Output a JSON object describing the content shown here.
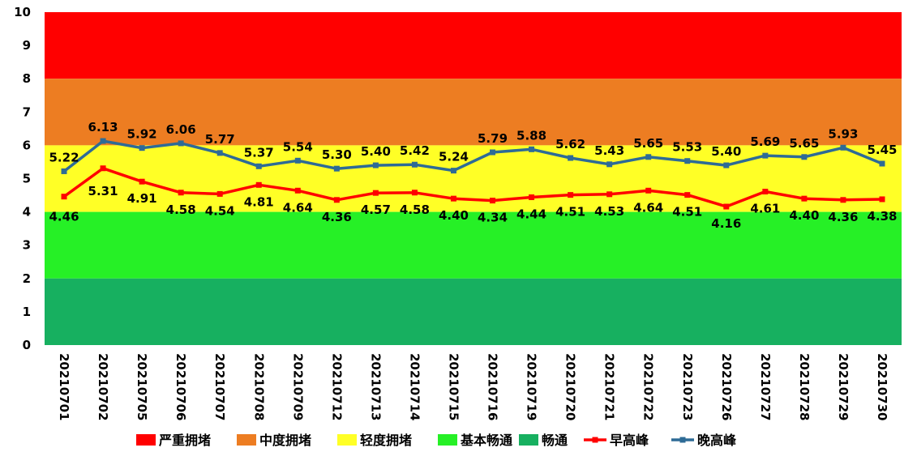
{
  "chart_data": {
    "type": "line",
    "ylim": [
      0,
      10
    ],
    "yticks": [
      "0",
      "1",
      "2",
      "3",
      "4",
      "5",
      "6",
      "7",
      "8",
      "9",
      "10"
    ],
    "categories": [
      "20210701",
      "20210702",
      "20210705",
      "20210706",
      "20210707",
      "20210708",
      "20210709",
      "20210712",
      "20210713",
      "20210714",
      "20210715",
      "20210716",
      "20210719",
      "20210720",
      "20210721",
      "20210722",
      "20210723",
      "20210726",
      "20210727",
      "20210728",
      "20210729",
      "20210730"
    ],
    "bands": [
      {
        "name": "严重拥堵",
        "from": 8,
        "to": 10,
        "color": "#ff0000"
      },
      {
        "name": "中度拥堵",
        "from": 6,
        "to": 8,
        "color": "#ed7d22"
      },
      {
        "name": "轻度拥堵",
        "from": 4,
        "to": 6,
        "color": "#ffff26"
      },
      {
        "name": "基本畅通",
        "from": 2,
        "to": 4,
        "color": "#26f026"
      },
      {
        "name": "畅通",
        "from": 0,
        "to": 2,
        "color": "#17b060"
      }
    ],
    "series": [
      {
        "name": "早高峰",
        "color": "#ff0000",
        "values": [
          4.46,
          5.31,
          4.91,
          4.58,
          4.54,
          4.81,
          4.64,
          4.36,
          4.57,
          4.58,
          4.4,
          4.34,
          4.44,
          4.51,
          4.53,
          4.64,
          4.51,
          4.16,
          4.61,
          4.4,
          4.36,
          4.38
        ],
        "labels": [
          "4.46",
          "5.31",
          "4.91",
          "4.58",
          "4.54",
          "4.81",
          "4.64",
          "4.36",
          "4.57",
          "4.58",
          "4.40",
          "4.34",
          "4.44",
          "4.51",
          "4.53",
          "4.64",
          "4.51",
          "4.16",
          "4.61",
          "4.40",
          "4.36",
          "4.38"
        ]
      },
      {
        "name": "晚高峰",
        "color": "#2e6b96",
        "values": [
          5.22,
          6.13,
          5.92,
          6.06,
          5.77,
          5.37,
          5.54,
          5.3,
          5.4,
          5.42,
          5.24,
          5.79,
          5.88,
          5.62,
          5.43,
          5.65,
          5.53,
          5.4,
          5.69,
          5.65,
          5.93,
          5.45
        ],
        "labels": [
          "5.22",
          "6.13",
          "5.92",
          "6.06",
          "5.77",
          "5.37",
          "5.54",
          "5.30",
          "5.40",
          "5.42",
          "5.24",
          "5.79",
          "5.88",
          "5.62",
          "5.43",
          "5.65",
          "5.53",
          "5.40",
          "5.69",
          "5.65",
          "5.93",
          "5.45"
        ]
      }
    ],
    "legend": {
      "position": "bottom"
    }
  }
}
